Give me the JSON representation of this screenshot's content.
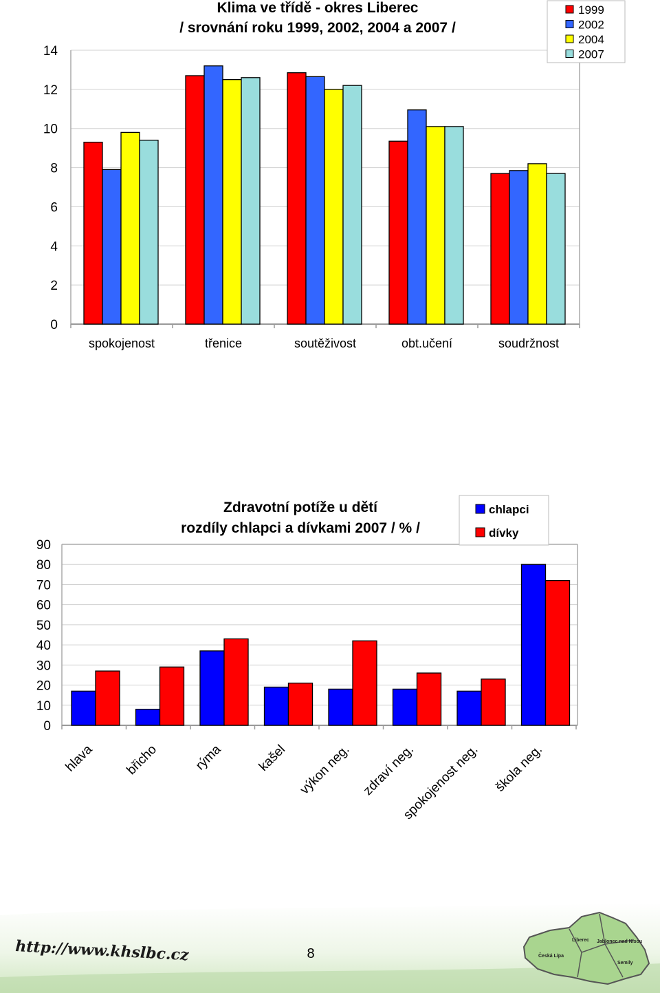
{
  "chart_data": [
    {
      "type": "bar",
      "title": "Klima ve třídě - okres Liberec",
      "subtitle": "/ srovnání roku 1999, 2002, 2004 a 2007 /",
      "categories": [
        "spokojenost",
        "třenice",
        "soutěživost",
        "obt.učení",
        "soudržnost"
      ],
      "series": [
        {
          "name": "1999",
          "color": "#ff0000",
          "values": [
            9.3,
            12.7,
            12.85,
            9.35,
            7.7
          ]
        },
        {
          "name": "2002",
          "color": "#3366ff",
          "values": [
            7.9,
            13.2,
            12.65,
            10.95,
            7.85
          ]
        },
        {
          "name": "2004",
          "color": "#ffff00",
          "values": [
            9.8,
            12.5,
            12.0,
            10.1,
            8.2
          ]
        },
        {
          "name": "2007",
          "color": "#99dddd",
          "values": [
            9.4,
            12.6,
            12.2,
            10.1,
            7.7
          ]
        }
      ],
      "ylim": [
        0,
        14
      ],
      "yticks": [
        "0",
        "2",
        "4",
        "6",
        "8",
        "10",
        "12",
        "14"
      ],
      "legend": "top-right",
      "grid": true
    },
    {
      "type": "bar",
      "title": "Zdravotní potíže u dětí",
      "subtitle": "rozdíly chlapci a dívkami 2007  / % /",
      "categories": [
        "hlava",
        "břicho",
        "rýma",
        "kašel",
        "výkon neg.",
        "zdraví neg.",
        "spokojenost neg.",
        "škola neg."
      ],
      "series": [
        {
          "name": "chlapci",
          "color": "#0000ff",
          "values": [
            17,
            8,
            37,
            19,
            18,
            18,
            17,
            80
          ]
        },
        {
          "name": "dívky",
          "color": "#ff0000",
          "values": [
            27,
            29,
            43,
            21,
            42,
            26,
            23,
            72
          ]
        }
      ],
      "ylim": [
        0,
        90
      ],
      "yticks": [
        "0",
        "10",
        "20",
        "30",
        "40",
        "50",
        "60",
        "70",
        "80",
        "90"
      ],
      "legend": "top-right",
      "grid": true
    }
  ],
  "footer": {
    "url": "http://www.khslbc.cz",
    "page_number": "8",
    "map_labels": [
      "Liberec",
      "Jablonec nad Nisou",
      "Česká Lípa",
      "Semily"
    ]
  }
}
